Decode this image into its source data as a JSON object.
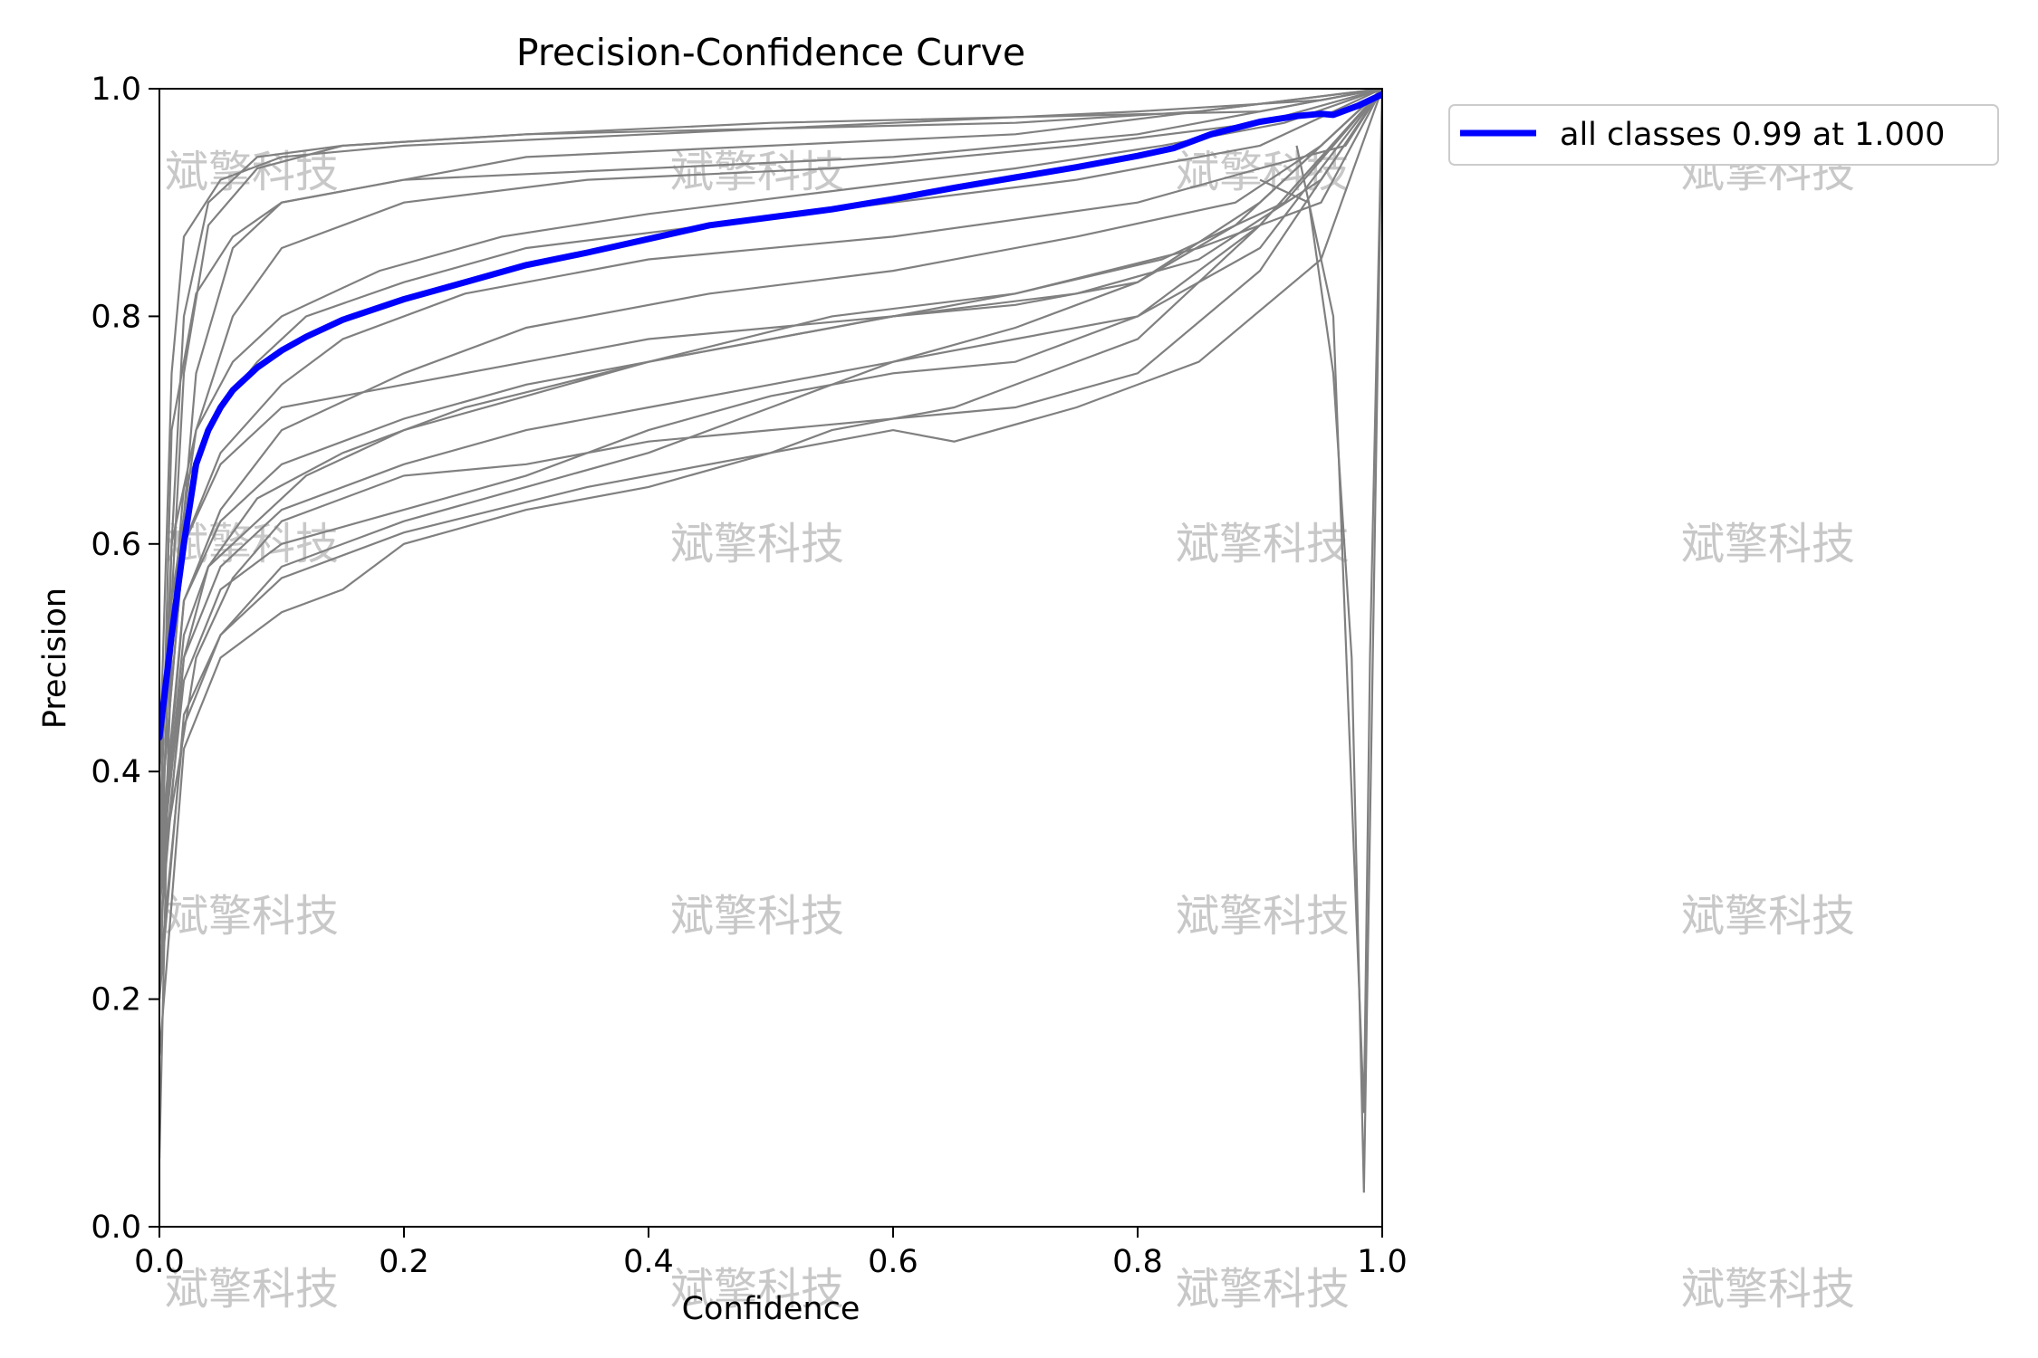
{
  "chart_data": {
    "type": "line",
    "title": "Precision-Confidence Curve",
    "xlabel": "Confidence",
    "ylabel": "Precision",
    "xlim": [
      0,
      1
    ],
    "ylim": [
      0,
      1
    ],
    "xticks": [
      "0.0",
      "0.2",
      "0.4",
      "0.6",
      "0.8",
      "1.0"
    ],
    "yticks": [
      "0.0",
      "0.2",
      "0.4",
      "0.6",
      "0.8",
      "1.0"
    ],
    "grid": false,
    "legend_position": "upper-right-outside",
    "colors": {
      "per_class": "#808080",
      "all_classes": "#0000ff"
    },
    "series": [
      {
        "name": "all classes 0.99 at 1.000",
        "x": [
          0.0,
          0.01,
          0.02,
          0.03,
          0.04,
          0.05,
          0.06,
          0.08,
          0.1,
          0.12,
          0.15,
          0.2,
          0.25,
          0.3,
          0.35,
          0.4,
          0.45,
          0.5,
          0.55,
          0.6,
          0.65,
          0.7,
          0.75,
          0.8,
          0.83,
          0.86,
          0.9,
          0.93,
          0.95,
          0.96,
          0.97,
          0.98,
          0.99,
          1.0
        ],
        "y": [
          0.43,
          0.52,
          0.6,
          0.67,
          0.7,
          0.72,
          0.735,
          0.755,
          0.77,
          0.782,
          0.797,
          0.815,
          0.83,
          0.845,
          0.856,
          0.868,
          0.88,
          0.887,
          0.894,
          0.903,
          0.913,
          0.922,
          0.931,
          0.941,
          0.948,
          0.96,
          0.971,
          0.976,
          0.978,
          0.977,
          0.981,
          0.985,
          0.99,
          0.995
        ]
      }
    ],
    "class_curves": [
      {
        "x": [
          0.0,
          0.005,
          0.01,
          0.02,
          0.04,
          0.08,
          0.15,
          0.3,
          0.5,
          0.7,
          0.9,
          1.0
        ],
        "y": [
          0.06,
          0.3,
          0.55,
          0.75,
          0.88,
          0.93,
          0.95,
          0.96,
          0.97,
          0.975,
          0.98,
          1.0
        ]
      },
      {
        "x": [
          0.0,
          0.01,
          0.02,
          0.04,
          0.08,
          0.15,
          0.3,
          0.5,
          0.7,
          0.85,
          1.0
        ],
        "y": [
          0.25,
          0.6,
          0.8,
          0.9,
          0.94,
          0.95,
          0.96,
          0.965,
          0.97,
          0.98,
          1.0
        ]
      },
      {
        "x": [
          0.0,
          0.01,
          0.03,
          0.06,
          0.1,
          0.2,
          0.4,
          0.6,
          0.8,
          0.95,
          1.0
        ],
        "y": [
          0.2,
          0.5,
          0.75,
          0.86,
          0.9,
          0.92,
          0.93,
          0.94,
          0.96,
          0.99,
          1.0
        ]
      },
      {
        "x": [
          0.0,
          0.01,
          0.03,
          0.06,
          0.1,
          0.2,
          0.35,
          0.55,
          0.75,
          0.9,
          1.0
        ],
        "y": [
          0.3,
          0.55,
          0.7,
          0.8,
          0.86,
          0.9,
          0.92,
          0.93,
          0.95,
          0.97,
          1.0
        ]
      },
      {
        "x": [
          0.0,
          0.02,
          0.05,
          0.1,
          0.15,
          0.25,
          0.4,
          0.6,
          0.8,
          0.9,
          0.97,
          1.0
        ],
        "y": [
          0.35,
          0.6,
          0.68,
          0.74,
          0.78,
          0.82,
          0.85,
          0.87,
          0.9,
          0.93,
          0.95,
          1.0
        ]
      },
      {
        "x": [
          0.0,
          0.02,
          0.05,
          0.1,
          0.2,
          0.3,
          0.45,
          0.6,
          0.75,
          0.88,
          0.95,
          1.0
        ],
        "y": [
          0.3,
          0.55,
          0.63,
          0.7,
          0.75,
          0.79,
          0.82,
          0.84,
          0.87,
          0.9,
          0.95,
          1.0
        ]
      },
      {
        "x": [
          0.0,
          0.02,
          0.04,
          0.08,
          0.15,
          0.25,
          0.4,
          0.55,
          0.7,
          0.85,
          0.95,
          1.0
        ],
        "y": [
          0.25,
          0.5,
          0.58,
          0.64,
          0.68,
          0.72,
          0.76,
          0.79,
          0.82,
          0.86,
          0.9,
          1.0
        ]
      },
      {
        "x": [
          0.0,
          0.02,
          0.05,
          0.1,
          0.2,
          0.35,
          0.5,
          0.6,
          0.65,
          0.75,
          0.85,
          0.95,
          1.0
        ],
        "y": [
          0.2,
          0.45,
          0.52,
          0.57,
          0.61,
          0.65,
          0.68,
          0.7,
          0.69,
          0.72,
          0.76,
          0.85,
          1.0
        ]
      },
      {
        "x": [
          0.0,
          0.02,
          0.05,
          0.1,
          0.15,
          0.2,
          0.3,
          0.4,
          0.5,
          0.55,
          0.65,
          0.8,
          0.9,
          1.0
        ],
        "y": [
          0.15,
          0.42,
          0.5,
          0.54,
          0.56,
          0.6,
          0.63,
          0.65,
          0.68,
          0.7,
          0.72,
          0.78,
          0.88,
          1.0
        ]
      },
      {
        "x": [
          0.0,
          0.03,
          0.06,
          0.1,
          0.2,
          0.3,
          0.4,
          0.5,
          0.6,
          0.7,
          0.8,
          0.9,
          1.0
        ],
        "y": [
          0.3,
          0.5,
          0.57,
          0.62,
          0.66,
          0.67,
          0.69,
          0.7,
          0.71,
          0.72,
          0.75,
          0.84,
          1.0
        ]
      },
      {
        "x": [
          0.0,
          0.02,
          0.05,
          0.1,
          0.2,
          0.3,
          0.4,
          0.5,
          0.6,
          0.7,
          0.8,
          0.9,
          1.0
        ],
        "y": [
          0.35,
          0.6,
          0.67,
          0.72,
          0.74,
          0.76,
          0.78,
          0.79,
          0.8,
          0.81,
          0.83,
          0.9,
          1.0
        ]
      },
      {
        "x": [
          0.0,
          0.02,
          0.05,
          0.08,
          0.12,
          0.2,
          0.3,
          0.45,
          0.6,
          0.75,
          0.9,
          1.0
        ],
        "y": [
          0.4,
          0.65,
          0.72,
          0.76,
          0.8,
          0.83,
          0.86,
          0.88,
          0.9,
          0.92,
          0.95,
          1.0
        ]
      },
      {
        "x": [
          0.0,
          0.01,
          0.03,
          0.06,
          0.1,
          0.2,
          0.3,
          0.5,
          0.7,
          0.85,
          1.0
        ],
        "y": [
          0.3,
          0.7,
          0.82,
          0.87,
          0.9,
          0.92,
          0.94,
          0.95,
          0.96,
          0.98,
          1.0
        ]
      },
      {
        "x": [
          0.0,
          0.02,
          0.04,
          0.08,
          0.12,
          0.2,
          0.3,
          0.4,
          0.55,
          0.7,
          0.82,
          0.92,
          1.0
        ],
        "y": [
          0.3,
          0.52,
          0.58,
          0.62,
          0.66,
          0.7,
          0.73,
          0.76,
          0.8,
          0.82,
          0.85,
          0.9,
          1.0
        ]
      },
      {
        "x": [
          0.0,
          0.02,
          0.05,
          0.1,
          0.2,
          0.3,
          0.4,
          0.5,
          0.6,
          0.7,
          0.8,
          0.9,
          1.0
        ],
        "y": [
          0.28,
          0.48,
          0.56,
          0.6,
          0.63,
          0.66,
          0.7,
          0.73,
          0.75,
          0.76,
          0.8,
          0.88,
          1.0
        ]
      },
      {
        "x": [
          0.0,
          0.01,
          0.03,
          0.06,
          0.1,
          0.18,
          0.28,
          0.4,
          0.55,
          0.7,
          0.82,
          0.92,
          1.0
        ],
        "y": [
          0.35,
          0.6,
          0.7,
          0.76,
          0.8,
          0.84,
          0.87,
          0.89,
          0.91,
          0.93,
          0.95,
          0.97,
          1.0
        ]
      },
      {
        "x": [
          0.0,
          0.02,
          0.05,
          0.1,
          0.2,
          0.3,
          0.4,
          0.5,
          0.6,
          0.7,
          0.8,
          0.88,
          0.95,
          1.0
        ],
        "y": [
          0.22,
          0.44,
          0.52,
          0.58,
          0.62,
          0.65,
          0.68,
          0.72,
          0.76,
          0.79,
          0.83,
          0.88,
          0.95,
          1.0
        ]
      },
      {
        "x": [
          0.0,
          0.01,
          0.02,
          0.05,
          0.1,
          0.2,
          0.4,
          0.6,
          0.8,
          0.95,
          1.0
        ],
        "y": [
          0.4,
          0.75,
          0.87,
          0.92,
          0.94,
          0.95,
          0.96,
          0.97,
          0.98,
          0.99,
          1.0
        ]
      },
      {
        "x": [
          0.0,
          0.02,
          0.05,
          0.1,
          0.2,
          0.3,
          0.45,
          0.6,
          0.75,
          0.85,
          0.95,
          1.0
        ],
        "y": [
          0.32,
          0.55,
          0.62,
          0.67,
          0.71,
          0.74,
          0.77,
          0.8,
          0.82,
          0.85,
          0.92,
          1.0
        ]
      },
      {
        "x": [
          0.0,
          0.02,
          0.05,
          0.1,
          0.2,
          0.3,
          0.4,
          0.5,
          0.6,
          0.7,
          0.8,
          0.9,
          1.0
        ],
        "y": [
          0.3,
          0.5,
          0.58,
          0.63,
          0.67,
          0.7,
          0.72,
          0.74,
          0.76,
          0.78,
          0.8,
          0.86,
          1.0
        ]
      }
    ],
    "class_curve_drops": [
      {
        "x": [
          0.9,
          0.94,
          0.96,
          0.975,
          0.985,
          1.0
        ],
        "y": [
          0.92,
          0.9,
          0.75,
          0.5,
          0.03,
          1.0
        ]
      },
      {
        "x": [
          0.93,
          0.96,
          0.985,
          0.99,
          1.0
        ],
        "y": [
          0.95,
          0.8,
          0.1,
          0.5,
          1.0
        ]
      }
    ]
  },
  "watermark": {
    "text": "斌擎科技",
    "color": "#c8c8c8"
  }
}
